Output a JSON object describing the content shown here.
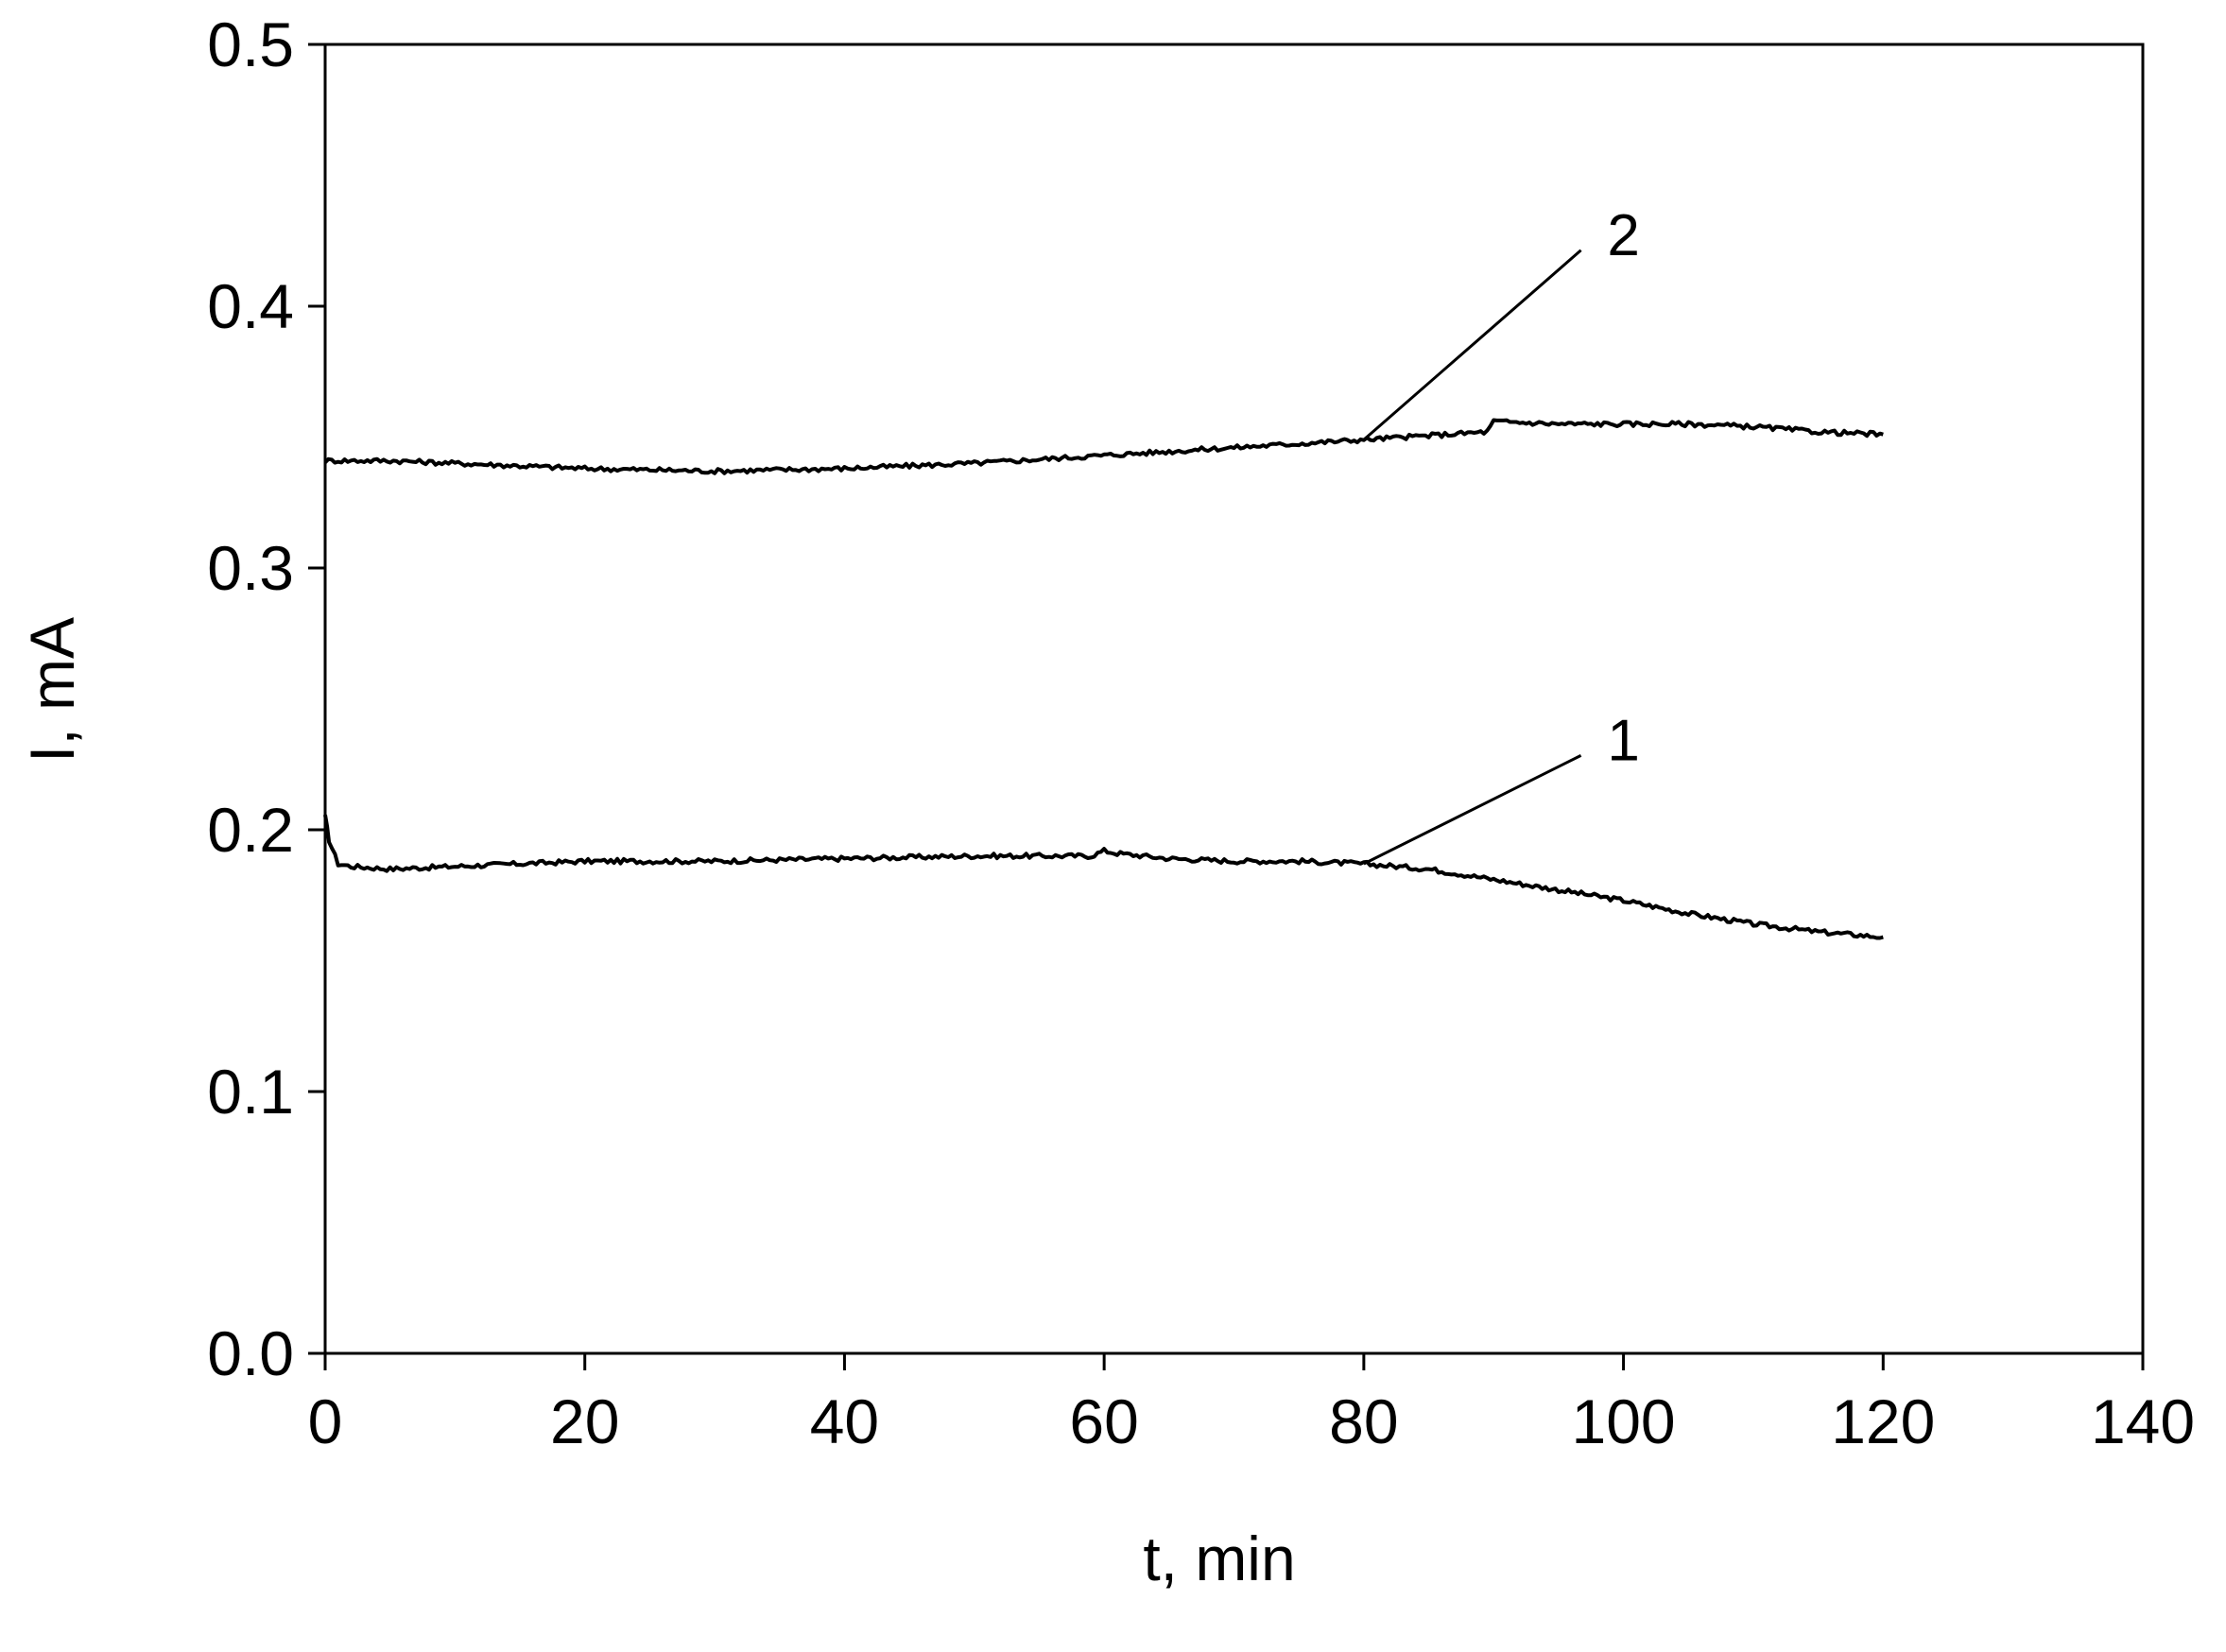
{
  "chart_data": {
    "type": "line",
    "title": "",
    "xlabel": "t, min",
    "ylabel": "I, mA",
    "xlim": [
      0,
      140
    ],
    "ylim": [
      0.0,
      0.5
    ],
    "x_ticks": [
      "0",
      "20",
      "40",
      "60",
      "80",
      "100",
      "120",
      "140"
    ],
    "y_ticks": [
      "0.0",
      "0.1",
      "0.2",
      "0.3",
      "0.4",
      "0.5"
    ],
    "grid": false,
    "legend": "none",
    "line_color": "#000000",
    "series": [
      {
        "label": "1",
        "x": [
          0,
          0.3,
          1,
          2,
          5,
          10,
          15,
          20,
          30,
          40,
          50,
          55,
          59,
          60,
          61,
          65,
          70,
          75,
          80,
          85,
          90,
          95,
          100,
          105,
          110,
          115,
          120
        ],
        "y": [
          0.205,
          0.196,
          0.187,
          0.186,
          0.185,
          0.186,
          0.187,
          0.188,
          0.188,
          0.189,
          0.19,
          0.19,
          0.19,
          0.192,
          0.191,
          0.189,
          0.188,
          0.188,
          0.187,
          0.185,
          0.181,
          0.177,
          0.173,
          0.168,
          0.164,
          0.161,
          0.159
        ],
        "annotation": {
          "text": "1",
          "x": 100,
          "y": 0.232,
          "point_x": 80,
          "point_y": 0.187
        }
      },
      {
        "label": "2",
        "x": [
          0,
          5,
          10,
          20,
          30,
          40,
          50,
          60,
          70,
          80,
          89.5,
          90,
          95,
          100,
          105,
          110,
          115,
          120
        ],
        "y": [
          0.341,
          0.341,
          0.34,
          0.338,
          0.337,
          0.338,
          0.34,
          0.343,
          0.346,
          0.349,
          0.352,
          0.356,
          0.355,
          0.355,
          0.355,
          0.354,
          0.352,
          0.351
        ],
        "annotation": {
          "text": "2",
          "x": 100,
          "y": 0.425,
          "point_x": 80,
          "point_y": 0.349
        }
      }
    ]
  }
}
